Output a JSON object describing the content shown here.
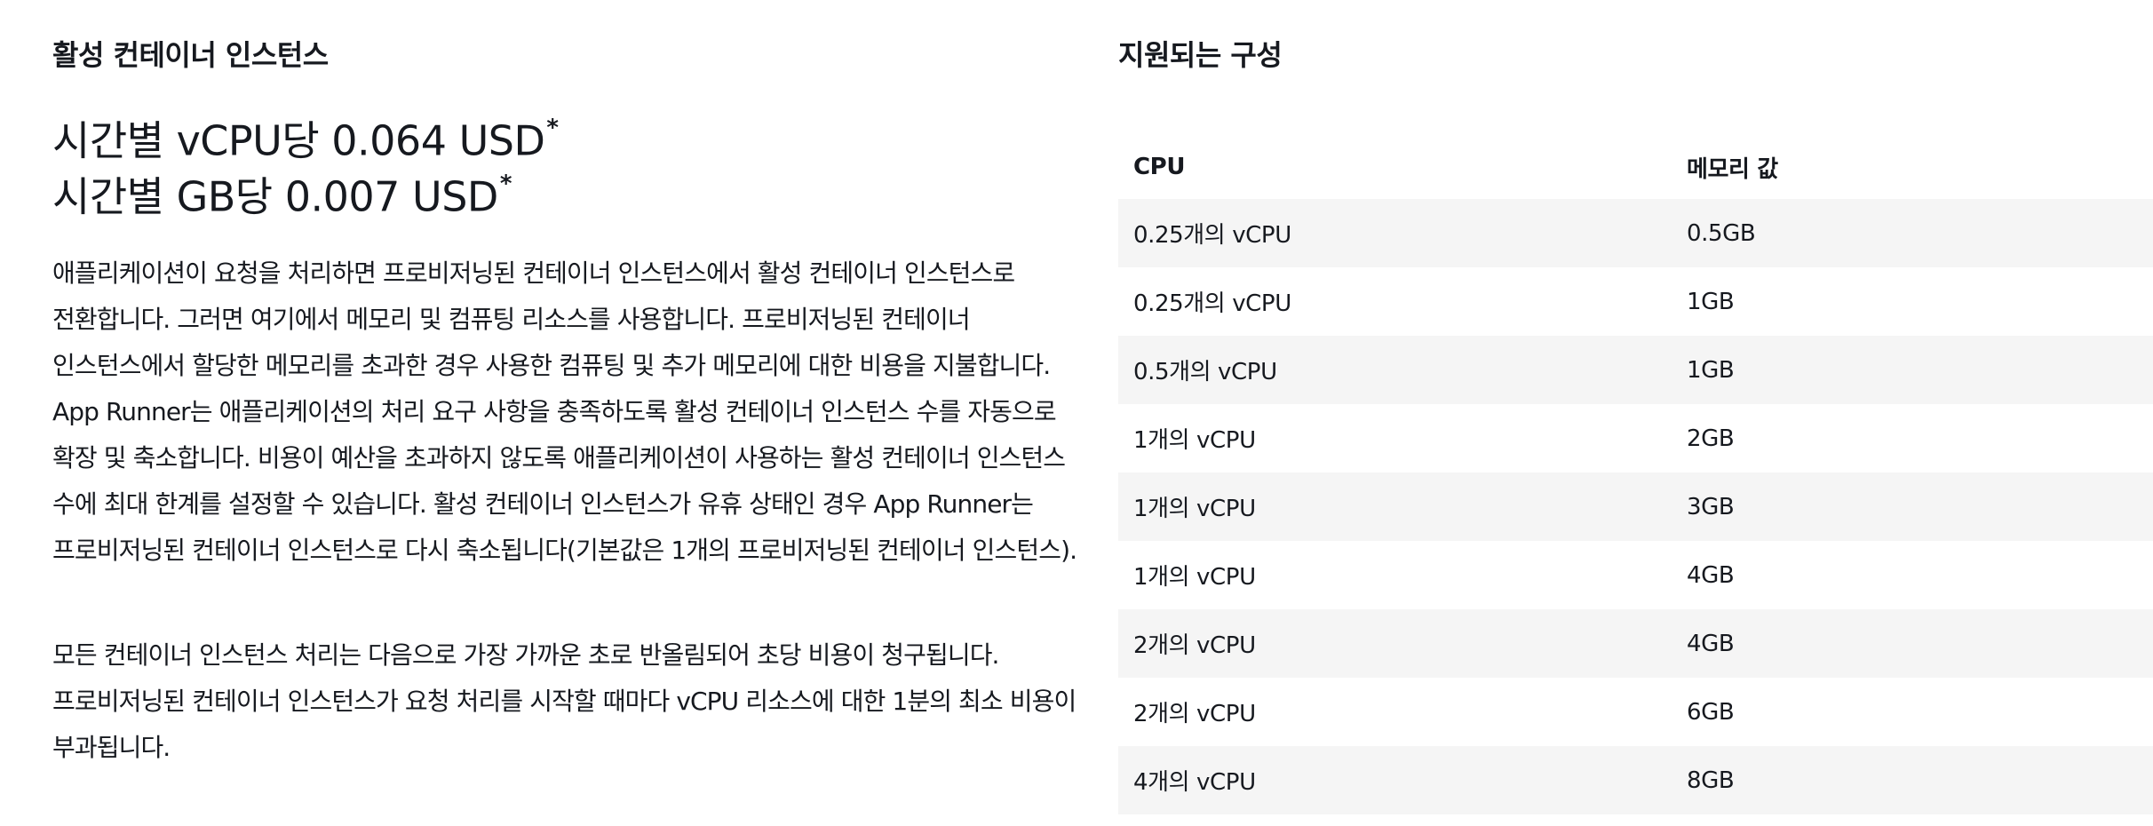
{
  "left": {
    "heading": "활성 컨테이너 인스턴스",
    "price_lines": [
      {
        "text": "시간별 vCPU당 0.064 USD",
        "mark": "*"
      },
      {
        "text": "시간별 GB당 0.007 USD",
        "mark": "*"
      }
    ],
    "paragraphs": [
      "애플리케이션이 요청을 처리하면 프로비저닝된 컨테이너 인스턴스에서 활성 컨테이너 인스턴스로 전환합니다. 그러면 여기에서 메모리 및 컴퓨팅 리소스를 사용합니다. 프로비저닝된 컨테이너 인스턴스에서 할당한 메모리를 초과한 경우 사용한 컴퓨팅 및 추가 메모리에 대한 비용을 지불합니다. App Runner는 애플리케이션의 처리 요구 사항을 충족하도록 활성 컨테이너 인스턴스 수를 자동으로 확장 및 축소합니다. 비용이 예산을 초과하지 않도록 애플리케이션이 사용하는 활성 컨테이너 인스턴스 수에 최대 한계를 설정할 수 있습니다. 활성 컨테이너 인스턴스가 유휴 상태인 경우 App Runner는 프로비저닝된 컨테이너 인스턴스로 다시 축소됩니다(기본값은 1개의 프로비저닝된 컨테이너 인스턴스).",
      "모든 컨테이너 인스턴스 처리는 다음으로 가장 가까운 초로 반올림되어 초당 비용이 청구됩니다. 프로비저닝된 컨테이너 인스턴스가 요청 처리를 시작할 때마다 vCPU 리소스에 대한 1분의 최소 비용이 부과됩니다."
    ]
  },
  "right": {
    "heading": "지원되는 구성",
    "table": {
      "headers": [
        "CPU",
        "메모리 값"
      ],
      "rows": [
        [
          "0.25개의 vCPU",
          "0.5GB"
        ],
        [
          "0.25개의 vCPU",
          "1GB"
        ],
        [
          "0.5개의 vCPU",
          "1GB"
        ],
        [
          "1개의 vCPU",
          "2GB"
        ],
        [
          "1개의 vCPU",
          "3GB"
        ],
        [
          "1개의 vCPU",
          "4GB"
        ],
        [
          "2개의 vCPU",
          "4GB"
        ],
        [
          "2개의 vCPU",
          "6GB"
        ],
        [
          "4개의 vCPU",
          "8GB"
        ]
      ]
    }
  }
}
